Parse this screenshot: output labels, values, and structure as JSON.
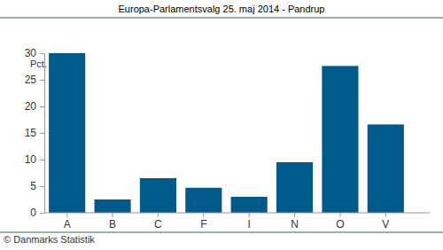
{
  "chart_data": {
    "type": "bar",
    "title": "Europa-Parlamentsvalg 25. maj 2014 - Pandrup",
    "ylabel": "Pct.",
    "source": "© Danmarks Statistik",
    "categories": [
      "A",
      "B",
      "C",
      "F",
      "I",
      "N",
      "O",
      "V"
    ],
    "values": [
      30.0,
      2.5,
      6.5,
      4.7,
      3.0,
      9.5,
      27.6,
      16.6
    ],
    "color": "#005a8c",
    "ylim": [
      0,
      30
    ],
    "yticks": [
      0,
      5,
      10,
      15,
      20,
      25,
      30
    ],
    "grid": false
  }
}
